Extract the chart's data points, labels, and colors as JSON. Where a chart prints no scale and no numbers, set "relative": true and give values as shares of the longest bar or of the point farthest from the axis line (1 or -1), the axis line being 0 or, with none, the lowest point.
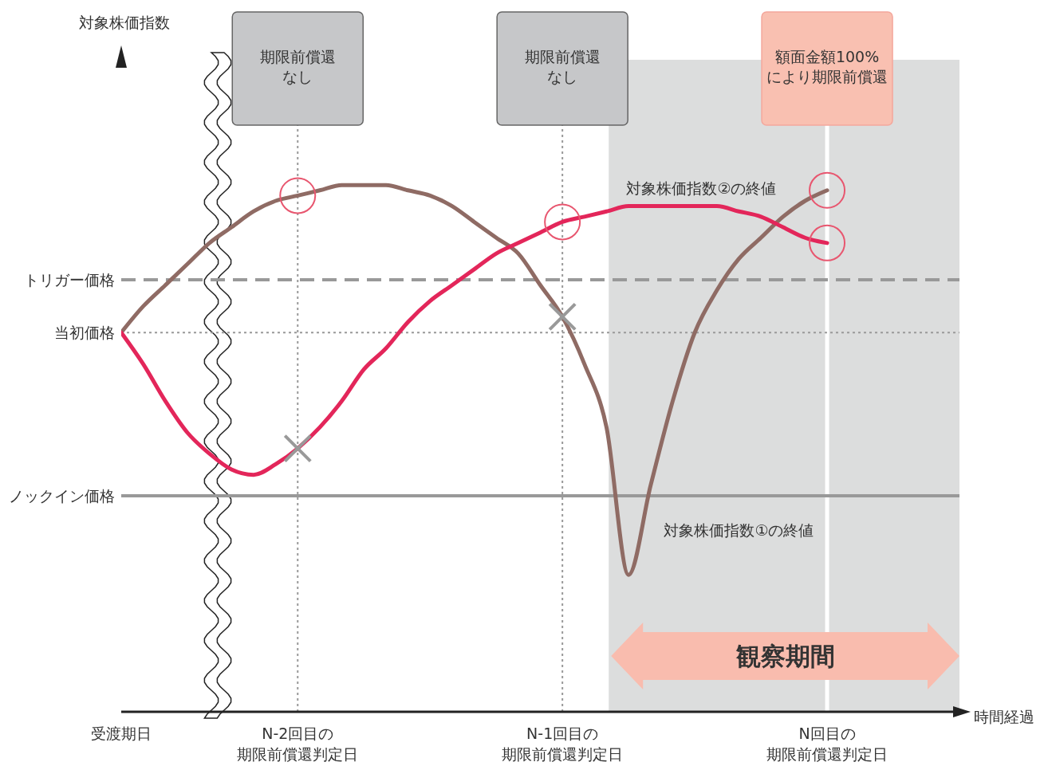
{
  "chart_data": {
    "type": "line",
    "relative": true,
    "xlabel": "時間経過",
    "categories": [
      "受渡期日",
      null,
      null,
      null,
      null,
      null,
      null,
      null,
      "N-2回目の期限前償還判定日",
      null,
      null,
      null,
      null,
      null,
      null,
      null,
      null,
      null,
      null,
      null,
      "N-1回目の期限前償還判定日",
      null,
      null,
      null,
      null,
      null,
      null,
      null,
      null,
      null,
      null,
      null,
      "N回目の期限前償還判定日",
      null,
      null,
      null,
      null,
      null,
      null
    ],
    "series": [
      {
        "name": "対象株価指数①の終値",
        "color": "#8f6b64",
        "values": [
          0.72,
          0.77,
          0.81,
          0.85,
          0.89,
          0.92,
          0.95,
          0.97,
          0.98,
          0.99,
          1.0,
          1.0,
          1.0,
          0.99,
          0.98,
          0.96,
          0.93,
          0.9,
          0.87,
          0.81,
          0.75,
          0.66,
          0.54,
          0.26,
          0.43,
          0.59,
          0.72,
          0.8,
          0.86,
          0.9,
          0.94,
          0.97,
          0.99,
          null,
          null,
          null,
          null,
          null,
          null
        ]
      },
      {
        "name": "対象株価指数②の終値",
        "color": "#e3265a",
        "values": [
          0.72,
          0.66,
          0.59,
          0.53,
          0.49,
          0.46,
          0.45,
          0.47,
          0.5,
          0.54,
          0.59,
          0.65,
          0.69,
          0.74,
          0.78,
          0.81,
          0.84,
          0.87,
          0.89,
          0.91,
          0.93,
          0.94,
          0.95,
          0.96,
          0.96,
          0.96,
          0.96,
          0.96,
          0.95,
          0.94,
          0.92,
          0.9,
          0.89,
          null,
          null,
          null,
          null,
          null,
          null
        ]
      }
    ],
    "ref_lines": [
      {
        "axis": "y",
        "value": 0.82,
        "label": "トリガー価格",
        "color": "#999999",
        "line_style": "dashed"
      },
      {
        "axis": "y",
        "value": 0.72,
        "label": "当初価格",
        "color": "#999999",
        "line_style": "dotted"
      },
      {
        "axis": "y",
        "value": 0.41,
        "label": "ノックイン価格",
        "color": "#999999",
        "line_style": "solid"
      },
      {
        "axis": "x",
        "value": "N-2回目の期限前償還判定日",
        "color": "#999999",
        "line_style": "dotted"
      },
      {
        "axis": "x",
        "value": "N-1回目の期限前償還判定日",
        "color": "#999999",
        "line_style": "dotted"
      },
      {
        "axis": "x",
        "value": "N回目の期限前償還判定日",
        "color": "#ffffff",
        "line_style": "solid"
      }
    ],
    "annotations": [
      {
        "text": "期限前償還なし",
        "x": "N-2回目の期限前償還判定日"
      },
      {
        "text": "期限前償還なし",
        "x": "N-1回目の期限前償還判定日"
      },
      {
        "text": "額面金額100%により期限前償還",
        "x": "N回目の期限前償還判定日"
      },
      "対象株価指数",
      "観察期間"
    ]
  }
}
